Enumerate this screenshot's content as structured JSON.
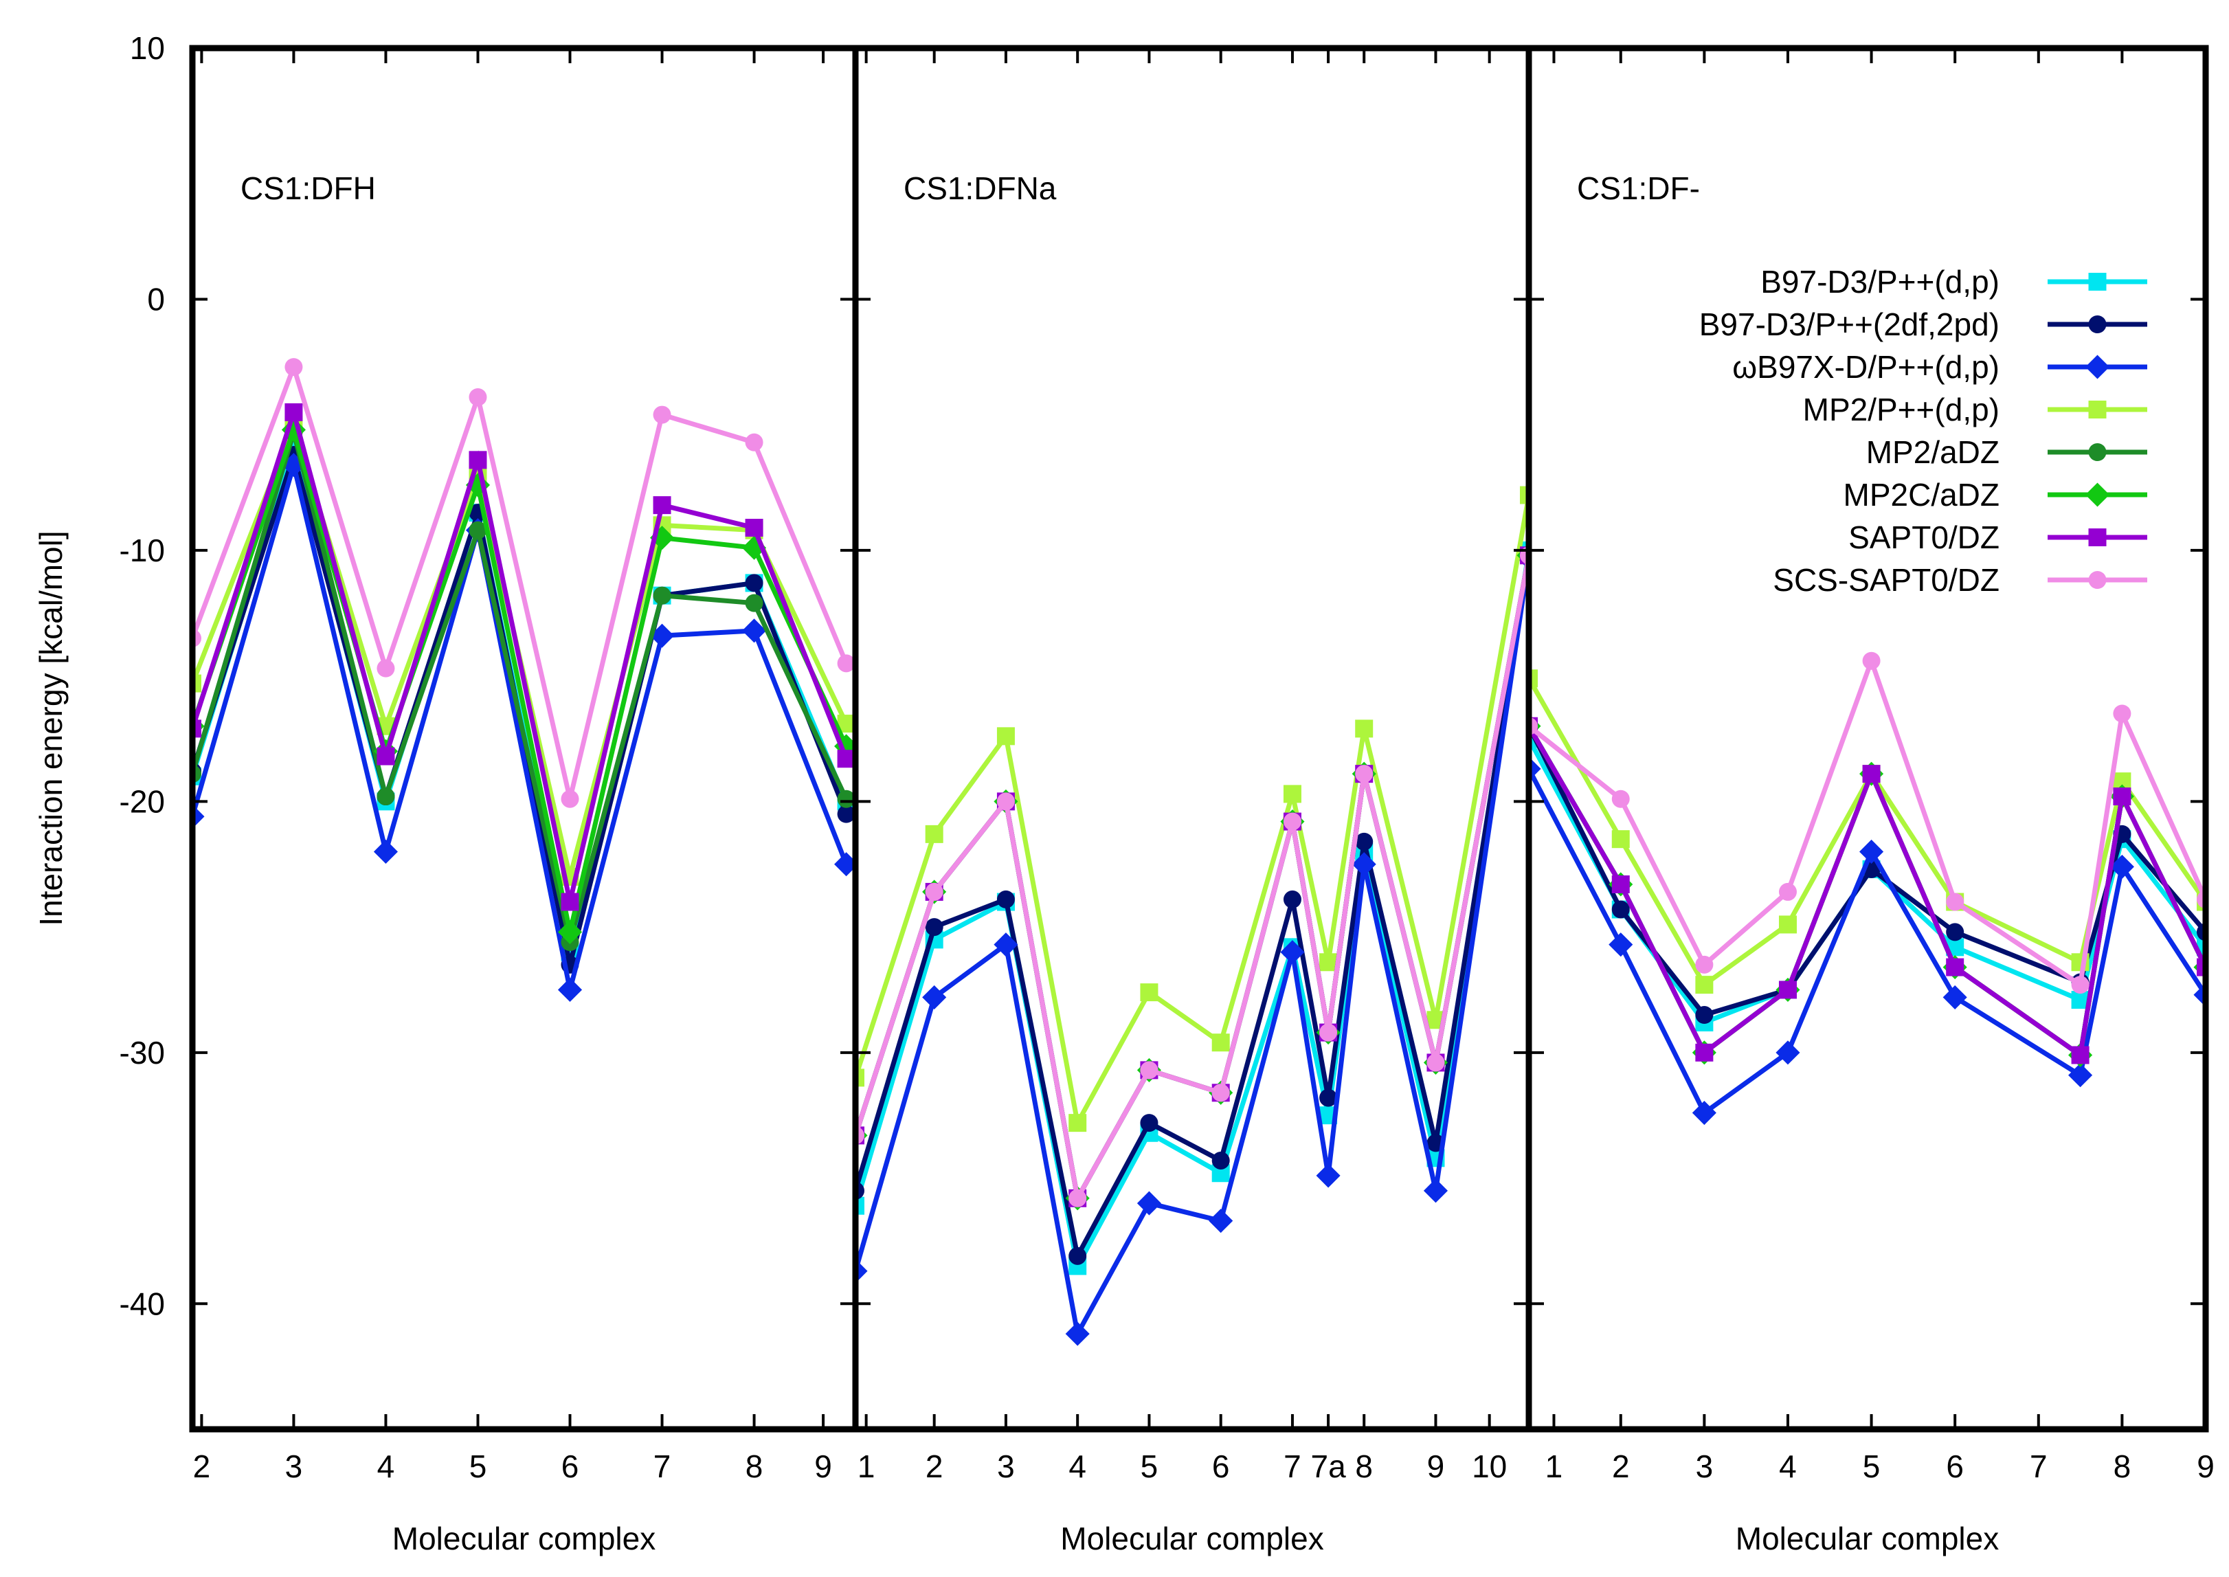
{
  "chart_data": {
    "type": "line",
    "ylabel": "Interaction energy [kcal/mol]",
    "ylim": [
      -45,
      10
    ],
    "yticks": [
      10,
      0,
      -10,
      -20,
      -30,
      -40
    ],
    "grid": false,
    "legend_placement": "right panel, top-right",
    "series_styles": [
      {
        "name": "B97-D3/P++(d,p)",
        "color": "#00e5f0",
        "marker": "square"
      },
      {
        "name": "B97-D3/P++(2df,2pd)",
        "color": "#000f6e",
        "marker": "circle"
      },
      {
        "name": "ωB97X-D/P++(d,p)",
        "color": "#0a2be8",
        "marker": "diamond"
      },
      {
        "name": "MP2/P++(d,p)",
        "color": "#adf53c",
        "marker": "square"
      },
      {
        "name": "MP2/aDZ",
        "color": "#1e8c28",
        "marker": "circle"
      },
      {
        "name": "MP2C/aDZ",
        "color": "#12c812",
        "marker": "diamond"
      },
      {
        "name": "SAPT0/DZ",
        "color": "#9400d2",
        "marker": "square"
      },
      {
        "name": "SCS-SAPT0/DZ",
        "color": "#f08ce6",
        "marker": "circle"
      }
    ],
    "panels": [
      {
        "title": "CS1:DFH",
        "xlabel": "Molecular complex",
        "xlim": [
          1.9,
          9.1
        ],
        "x": [
          1.9,
          3,
          4,
          5,
          6,
          7,
          8,
          9
        ],
        "xticks": [
          {
            "pos": 2,
            "label": "2"
          },
          {
            "pos": 3,
            "label": "3"
          },
          {
            "pos": 4,
            "label": "4"
          },
          {
            "pos": 5,
            "label": "5"
          },
          {
            "pos": 6,
            "label": "6"
          },
          {
            "pos": 7,
            "label": "7"
          },
          {
            "pos": 8,
            "label": "8"
          },
          {
            "pos": 8.75,
            "label": "9"
          }
        ],
        "series": [
          {
            "name": "B97-D3/P++(d,p)",
            "values": [
              -19.0,
              -6.0,
              -20.0,
              -8.5,
              -26.0,
              -11.8,
              -11.3,
              -20.0
            ]
          },
          {
            "name": "B97-D3/P++(2df,2pd)",
            "values": [
              -18.8,
              -6.2,
              -19.8,
              -8.5,
              -26.5,
              -11.8,
              -11.3,
              -20.5
            ]
          },
          {
            "name": "ωB97X-D/P++(d,p)",
            "values": [
              -20.6,
              -6.6,
              -22.0,
              -9.2,
              -27.5,
              -13.4,
              -13.2,
              -22.5
            ]
          },
          {
            "name": "MP2/P++(d,p)",
            "values": [
              -15.3,
              -5.0,
              -17.0,
              -7.0,
              -23.0,
              -9.0,
              -9.2,
              -16.9
            ]
          },
          {
            "name": "MP2/aDZ",
            "values": [
              -18.9,
              -5.3,
              -19.8,
              -9.2,
              -25.6,
              -11.8,
              -12.1,
              -19.9
            ]
          },
          {
            "name": "MP2C/aDZ",
            "values": [
              -17.0,
              -5.2,
              -18.0,
              -7.4,
              -25.2,
              -9.5,
              -9.9,
              -17.8
            ]
          },
          {
            "name": "SAPT0/DZ",
            "values": [
              -17.1,
              -4.5,
              -18.2,
              -6.4,
              -24.0,
              -8.2,
              -9.1,
              -18.3
            ]
          },
          {
            "name": "SCS-SAPT0/DZ",
            "values": [
              -13.5,
              -2.7,
              -14.7,
              -3.9,
              -19.9,
              -4.6,
              -5.7,
              -14.5
            ]
          }
        ]
      },
      {
        "title": "CS1:DFNa",
        "xlabel": "Molecular complex",
        "xlim": [
          0.9,
          10.3
        ],
        "x": [
          0.9,
          2,
          3,
          4,
          5,
          6,
          7,
          7.5,
          8,
          9,
          10.3
        ],
        "xticks": [
          {
            "pos": 1.05,
            "label": "1"
          },
          {
            "pos": 2,
            "label": "2"
          },
          {
            "pos": 3,
            "label": "3"
          },
          {
            "pos": 4,
            "label": "4"
          },
          {
            "pos": 5,
            "label": "5"
          },
          {
            "pos": 6,
            "label": "6"
          },
          {
            "pos": 7,
            "label": "7"
          },
          {
            "pos": 7.5,
            "label": "7a"
          },
          {
            "pos": 8,
            "label": "8"
          },
          {
            "pos": 9,
            "label": "9"
          },
          {
            "pos": 9.75,
            "label": "10"
          }
        ],
        "series": [
          {
            "name": "B97-D3/P++(d,p)",
            "values": [
              -36.1,
              -25.5,
              -24.0,
              -38.5,
              -33.2,
              -34.8,
              -25.8,
              -32.5,
              -22.0,
              -34.2,
              -10.0
            ]
          },
          {
            "name": "B97-D3/P++(2df,2pd)",
            "values": [
              -35.5,
              -25.0,
              -23.9,
              -38.1,
              -32.8,
              -34.3,
              -23.9,
              -31.8,
              -21.6,
              -33.6,
              -10.2
            ]
          },
          {
            "name": "ωB97X-D/P++(d,p)",
            "values": [
              -38.7,
              -27.8,
              -25.7,
              -41.2,
              -36.0,
              -36.7,
              -26.0,
              -34.9,
              -22.5,
              -35.5,
              -10.3
            ]
          },
          {
            "name": "MP2/P++(d,p)",
            "values": [
              -31.0,
              -21.3,
              -17.4,
              -32.8,
              -27.6,
              -29.6,
              -19.7,
              -26.4,
              -17.1,
              -28.7,
              -7.8
            ]
          },
          {
            "name": "MP2/aDZ",
            "values": [
              -33.3,
              -23.6,
              -20.0,
              -35.8,
              -30.7,
              -31.6,
              -20.8,
              -29.2,
              -18.9,
              -30.4,
              -10.2
            ]
          },
          {
            "name": "MP2C/aDZ",
            "values": [
              -33.3,
              -23.6,
              -20.0,
              -35.8,
              -30.7,
              -31.6,
              -20.8,
              -29.2,
              -18.9,
              -30.4,
              -10.2
            ]
          },
          {
            "name": "SAPT0/DZ",
            "values": [
              -33.3,
              -23.6,
              -20.0,
              -35.8,
              -30.7,
              -31.6,
              -20.8,
              -29.2,
              -18.9,
              -30.4,
              -10.2
            ]
          },
          {
            "name": "SCS-SAPT0/DZ",
            "values": [
              -33.3,
              -23.6,
              -20.0,
              -35.8,
              -30.7,
              -31.6,
              -20.8,
              -29.2,
              -18.9,
              -30.4,
              -10.2
            ]
          }
        ]
      },
      {
        "title": "CS1:DF-",
        "xlabel": "Molecular complex",
        "xlim": [
          0.9,
          9.0
        ],
        "x": [
          0.9,
          2,
          3,
          4,
          5,
          6,
          7.5,
          8,
          9.0
        ],
        "xticks": [
          {
            "pos": 1.2,
            "label": "1"
          },
          {
            "pos": 2,
            "label": "2"
          },
          {
            "pos": 3,
            "label": "3"
          },
          {
            "pos": 4,
            "label": "4"
          },
          {
            "pos": 5,
            "label": "5"
          },
          {
            "pos": 6,
            "label": "6"
          },
          {
            "pos": 7,
            "label": "7"
          },
          {
            "pos": 8,
            "label": "8"
          },
          {
            "pos": 9,
            "label": "9"
          }
        ],
        "series": [
          {
            "name": "B97-D3/P++(d,p)",
            "values": [
              -17.5,
              -24.3,
              -28.8,
              -27.5,
              -22.7,
              -25.8,
              -27.9,
              -21.5,
              -25.8
            ]
          },
          {
            "name": "B97-D3/P++(2df,2pd)",
            "values": [
              -17.0,
              -24.3,
              -28.5,
              -27.5,
              -22.7,
              -25.2,
              -27.2,
              -21.3,
              -25.2
            ]
          },
          {
            "name": "ωB97X-D/P++(d,p)",
            "values": [
              -18.7,
              -25.7,
              -32.4,
              -30.0,
              -22.0,
              -27.8,
              -30.9,
              -22.6,
              -27.7
            ]
          },
          {
            "name": "MP2/P++(d,p)",
            "values": [
              -15.1,
              -21.5,
              -27.3,
              -24.9,
              -18.9,
              -24.0,
              -26.4,
              -19.2,
              -24.0
            ]
          },
          {
            "name": "MP2/aDZ",
            "values": [
              -17.0,
              -23.3,
              -30.0,
              -27.5,
              -18.9,
              -26.6,
              -30.1,
              -19.8,
              -26.6
            ]
          },
          {
            "name": "MP2C/aDZ",
            "values": [
              -17.0,
              -23.3,
              -30.0,
              -27.5,
              -18.9,
              -26.6,
              -30.1,
              -19.8,
              -26.6
            ]
          },
          {
            "name": "SAPT0/DZ",
            "values": [
              -17.0,
              -23.3,
              -30.0,
              -27.5,
              -18.9,
              -26.6,
              -30.1,
              -19.8,
              -26.6
            ]
          },
          {
            "name": "SCS-SAPT0/DZ",
            "values": [
              -17.0,
              -19.9,
              -26.5,
              -23.6,
              -14.4,
              -24.0,
              -27.3,
              -16.5,
              -23.9
            ]
          }
        ]
      }
    ]
  }
}
